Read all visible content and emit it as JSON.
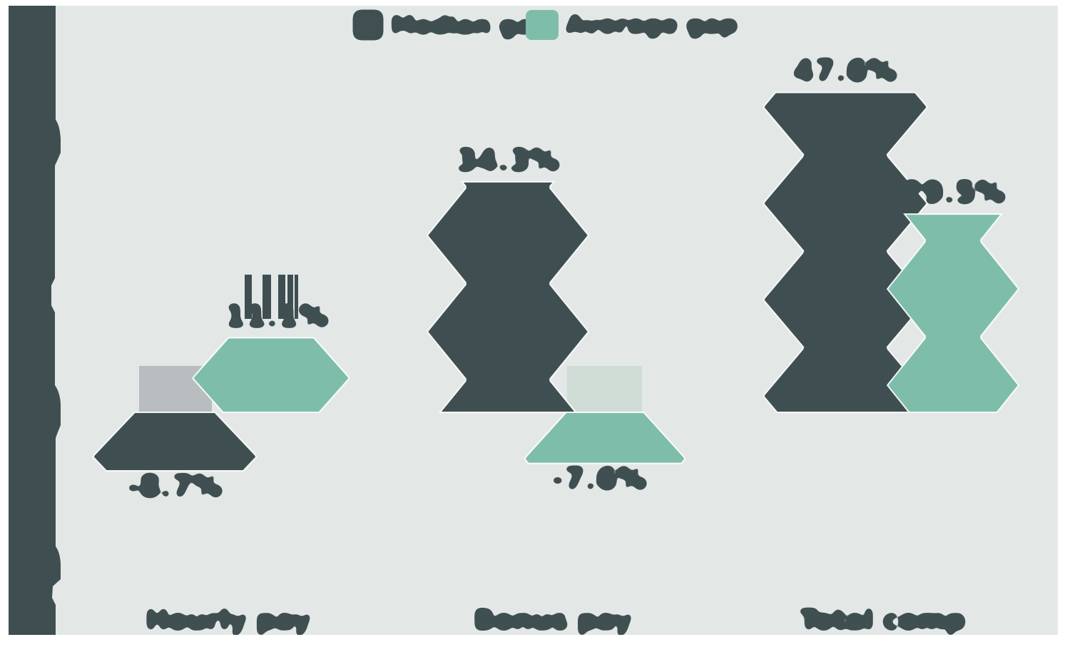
{
  "canvas": {
    "background": "#e3e8e6",
    "page_background": "#ffffff"
  },
  "colors": {
    "dark": "#3f4f51",
    "teal": "#7fbdab",
    "gray_block": "#b8bec0",
    "pale_block": "#cfdcd6",
    "axis_band": "#3f4f51"
  },
  "legend": {
    "position": "top-center",
    "items": [
      {
        "label": "Median gap",
        "color": "#3f4f51"
      },
      {
        "label": "Average gap",
        "color": "#7fbdab"
      }
    ]
  },
  "chart_data": {
    "type": "bar",
    "title": "",
    "xlabel": "",
    "ylabel": "",
    "categories": [
      "Hourly pay",
      "Bonus pay",
      "Total comp"
    ],
    "series": [
      {
        "name": "Median gap",
        "color": "#3f4f51",
        "values": [
          -8.7,
          34.3,
          47.6
        ],
        "labels": [
          "-8.7%",
          "34.3%",
          "47.6%"
        ]
      },
      {
        "name": "Average gap",
        "color": "#7fbdab",
        "values": [
          11.1,
          -7.6,
          29.5
        ],
        "labels": [
          "11.1%",
          "-7.6%",
          "29.5%"
        ]
      }
    ],
    "ylim": [
      -27,
      58
    ],
    "baseline": 0,
    "grid": false,
    "legend_position": "top-center"
  }
}
